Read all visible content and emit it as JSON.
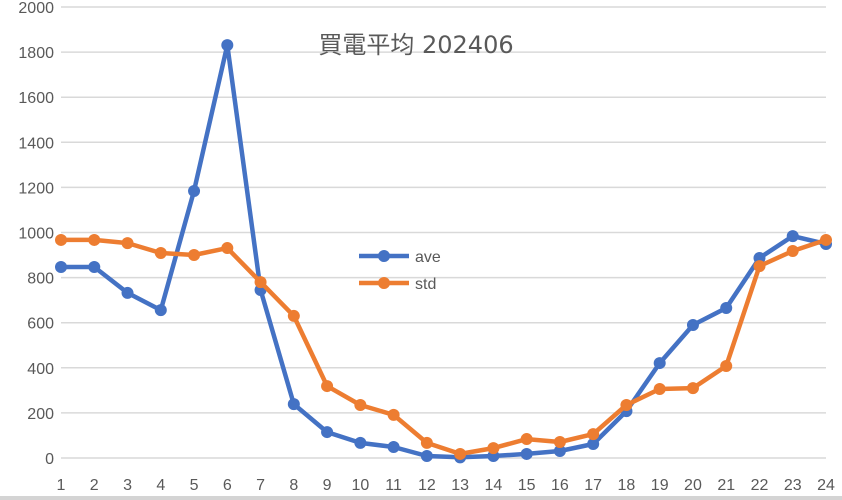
{
  "chart_data": {
    "type": "line",
    "title": "買電平均 202406",
    "xlabel": "",
    "ylabel": "",
    "ylim": [
      0,
      2000
    ],
    "yticks": [
      0,
      200,
      400,
      600,
      800,
      1000,
      1200,
      1400,
      1600,
      1800,
      2000
    ],
    "grid": true,
    "legend_position": "inside-center-left",
    "categories": [
      "1",
      "2",
      "3",
      "4",
      "5",
      "6",
      "7",
      "8",
      "9",
      "10",
      "11",
      "12",
      "13",
      "14",
      "15",
      "16",
      "17",
      "18",
      "19",
      "20",
      "21",
      "22",
      "23",
      "24"
    ],
    "series": [
      {
        "name": "ave",
        "color": "#4472C4",
        "values": [
          847,
          847,
          732,
          656,
          1184,
          1831,
          745,
          239,
          115,
          67,
          49,
          9,
          3,
          9,
          18,
          31,
          62,
          208,
          421,
          590,
          665,
          887,
          984,
          949
        ]
      },
      {
        "name": "std",
        "color": "#ED7D31",
        "values": [
          967,
          967,
          953,
          909,
          900,
          931,
          780,
          630,
          319,
          235,
          191,
          67,
          18,
          44,
          84,
          71,
          106,
          235,
          306,
          310,
          408,
          851,
          918,
          967
        ]
      }
    ]
  }
}
